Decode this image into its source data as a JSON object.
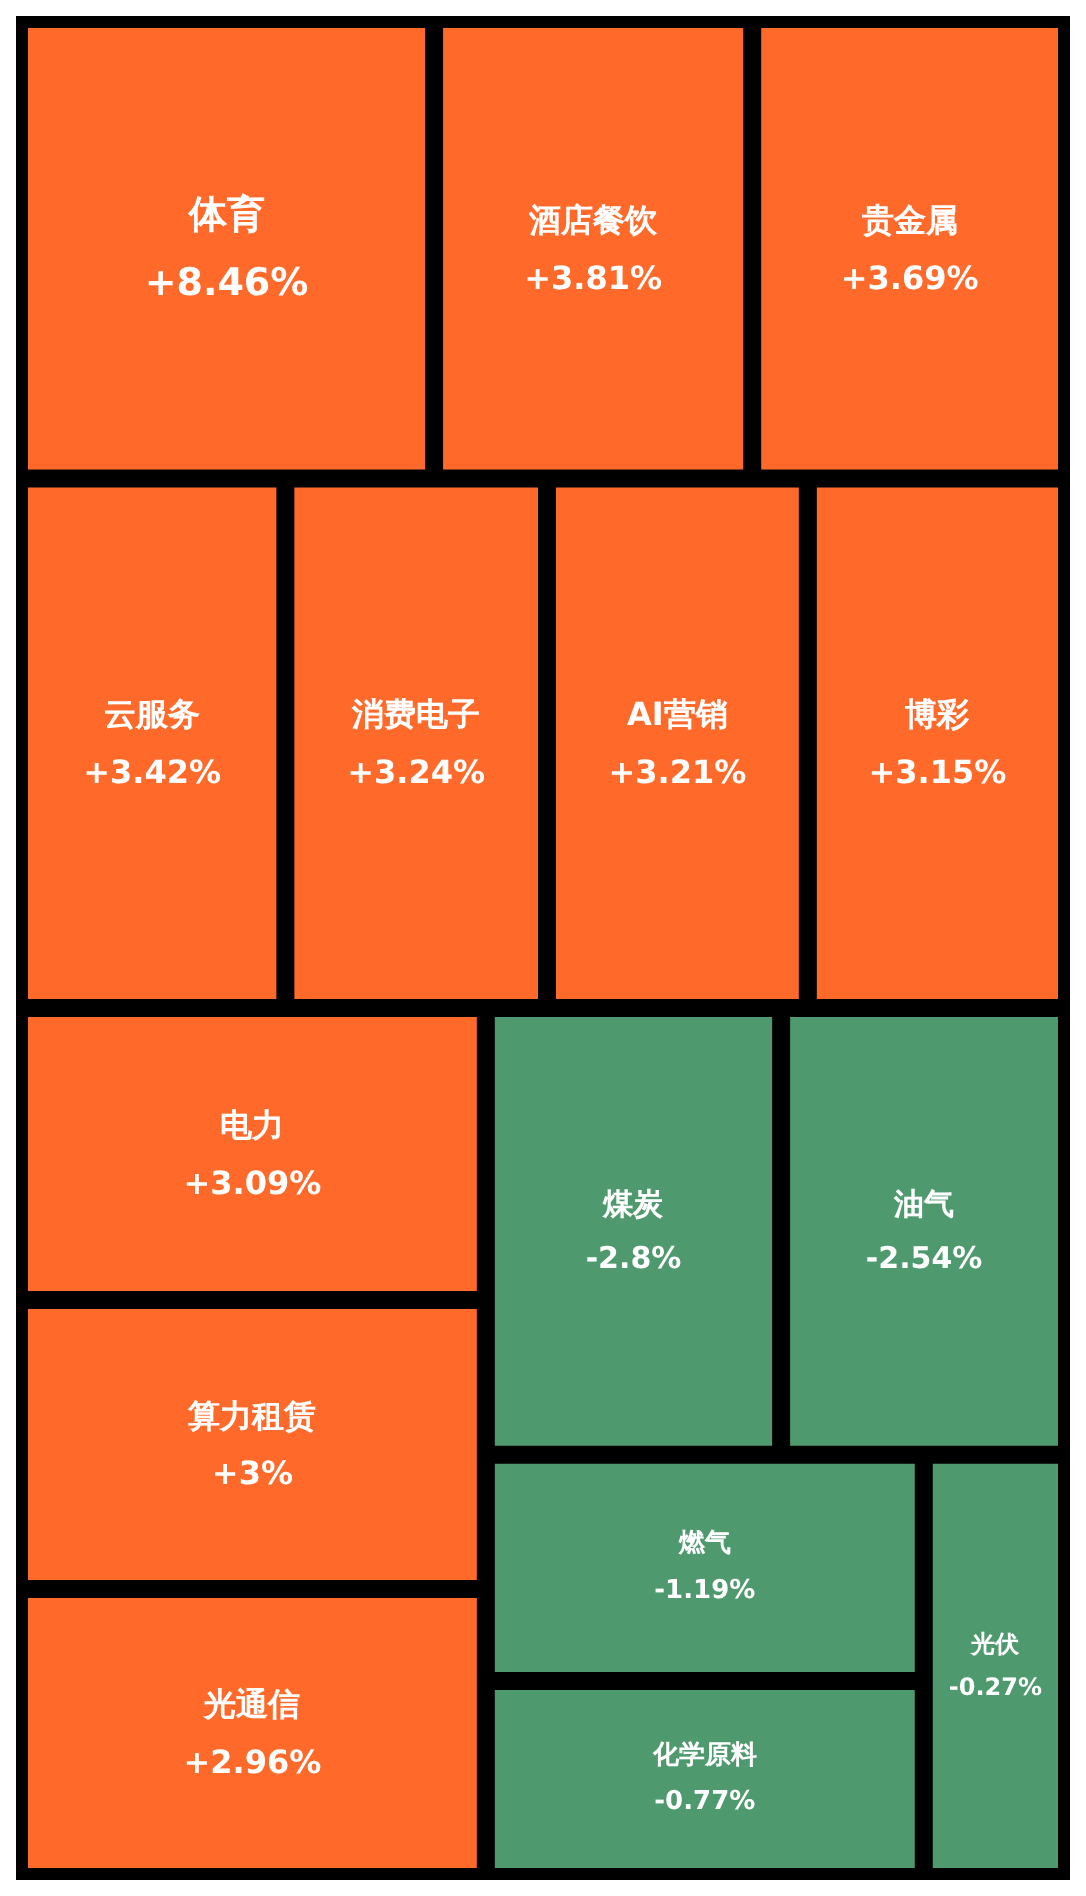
{
  "chart_data": {
    "type": "other",
    "categories": [
      "体育",
      "酒店餐饮",
      "贵金属",
      "云服务",
      "AI营销",
      "博彩",
      "消费电子",
      "电力",
      "算力租赁",
      "光通信",
      "光伏",
      "燃气",
      "化学原料",
      "煤炭",
      "油气"
    ],
    "values": [
      8.46,
      3.81,
      3.69,
      3.42,
      3.21,
      3.15,
      3.24,
      3.09,
      3,
      2.96,
      -0.27,
      -1.19,
      -0.77,
      -2.8,
      -2.54
    ],
    "value_labels": [
      "+8.46%",
      "+3.81%",
      "+3.69%",
      "+3.42%",
      "+3.21%",
      "+3.15%",
      "+3.24%",
      "+3.09%",
      "+3%",
      "+2.96%",
      "-0.27%",
      "-1.19%",
      "-0.77%",
      "-2.8%",
      "-2.54%"
    ],
    "colors": [
      "#ff6a2a",
      "#ff6a2a",
      "#ff6a2a",
      "#ff6a2a",
      "#ff6a2a",
      "#ff6a2a",
      "#ff6a2a",
      "#ff6a2a",
      "#ff6a2a",
      "#ff6a2a",
      "#4e9a6e",
      "#4e9a6e",
      "#4e9a6e",
      "#4e9a6e",
      "#4e9a6e"
    ]
  }
}
